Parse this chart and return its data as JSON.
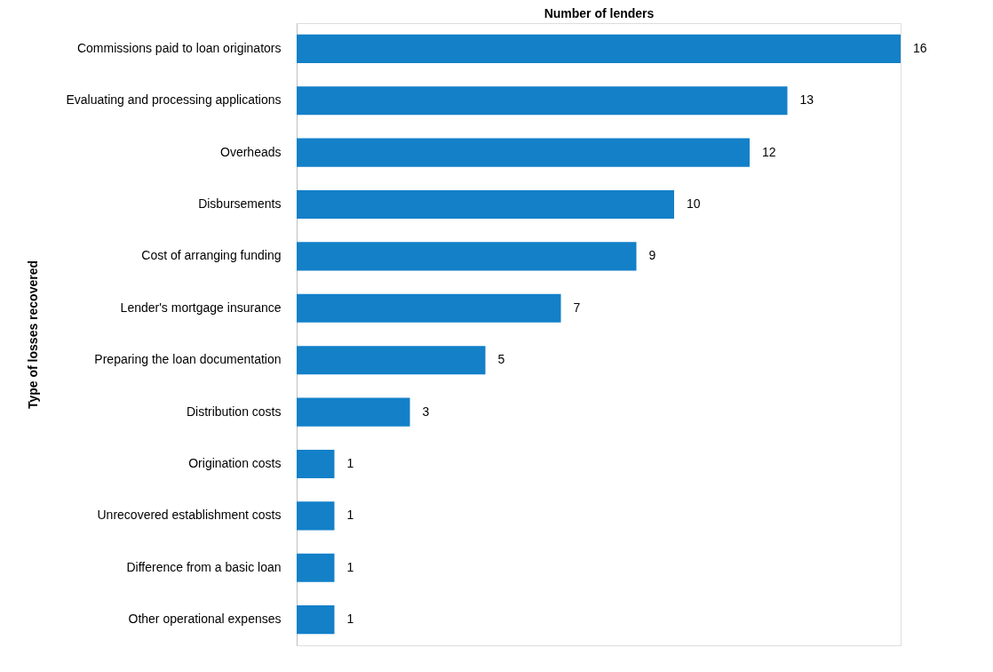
{
  "chart_data": {
    "type": "bar",
    "orientation": "horizontal",
    "xlabel": "Number of lenders",
    "ylabel": "Type of losses recovered",
    "categories": [
      "Commissions paid to loan originators",
      "Evaluating and processing applications",
      "Overheads",
      "Disbursements",
      "Cost of arranging funding",
      "Lender's mortgage insurance",
      "Preparing the loan documentation",
      "Distribution costs",
      "Origination costs",
      "Unrecovered establishment costs",
      "Difference from a basic loan",
      "Other operational expenses"
    ],
    "values": [
      16,
      13,
      12,
      10,
      9,
      7,
      5,
      3,
      1,
      1,
      1,
      1
    ],
    "color": "#1380c8",
    "data_labels": true
  }
}
